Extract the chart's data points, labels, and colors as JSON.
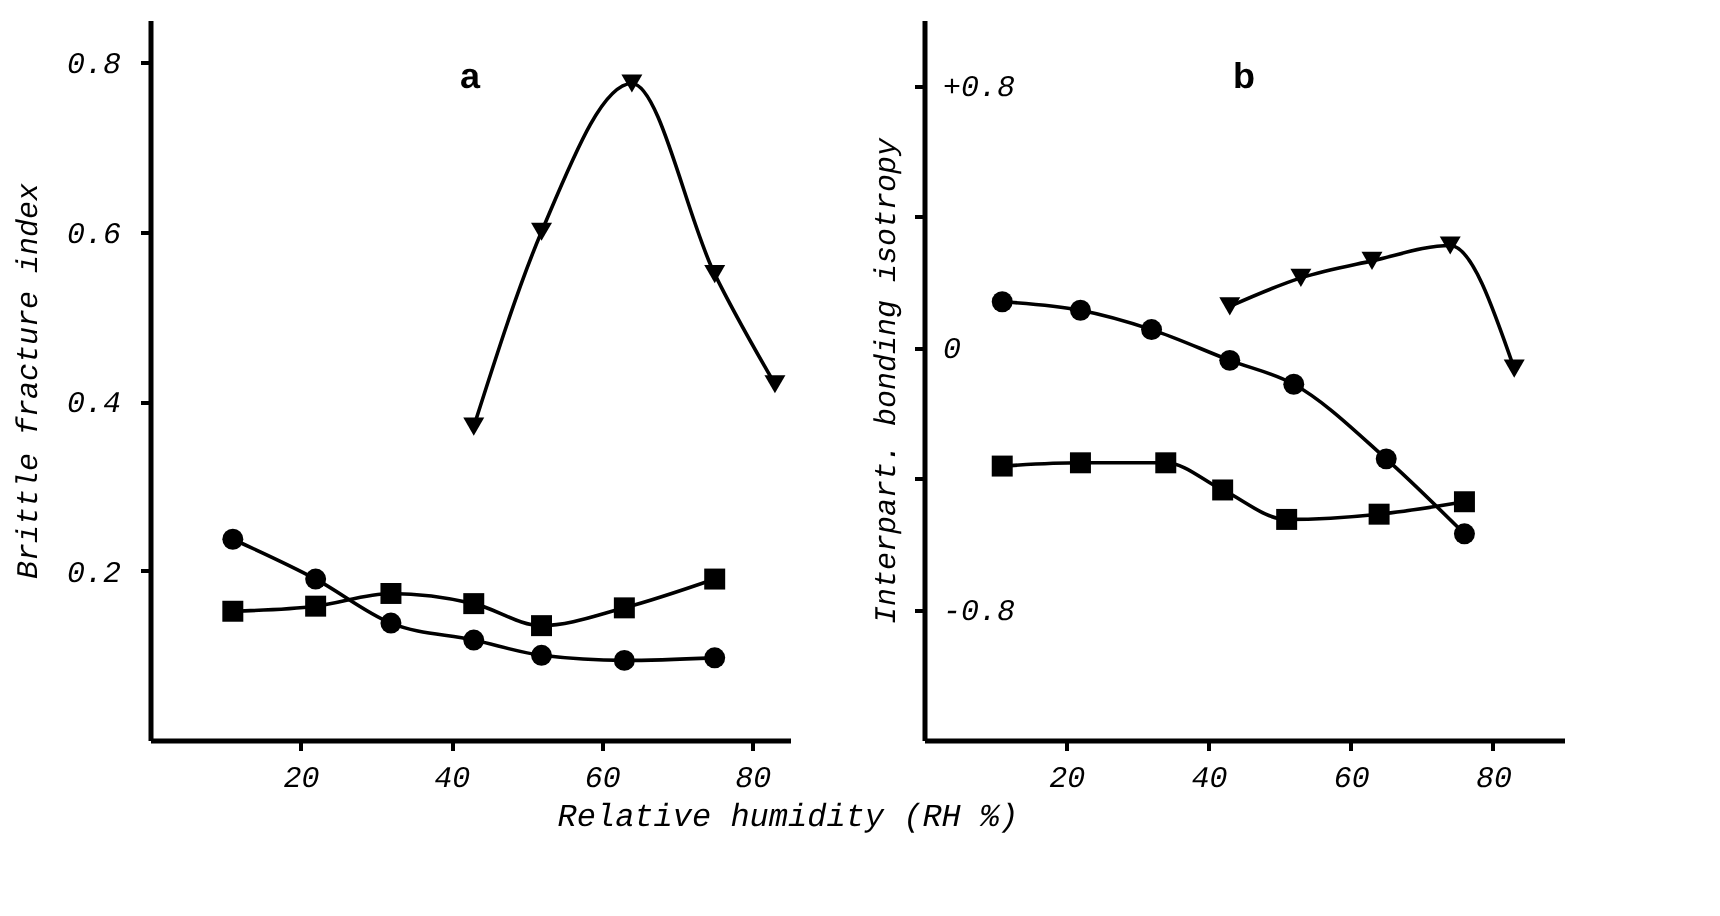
{
  "chart_data": [
    {
      "type": "line",
      "title": "a",
      "xlabel": "Relative humidity (RH %)",
      "ylabel": "Brittle fracture index",
      "xlim": [
        0,
        85
      ],
      "ylim": [
        0,
        0.85
      ],
      "xticks": [
        20,
        40,
        60,
        80
      ],
      "yticks": [
        0.2,
        0.4,
        0.6,
        0.8
      ],
      "grid": false,
      "line_style": "solid",
      "series": [
        {
          "color": "#000000",
          "marker": "triangle",
          "x": [
            43,
            52,
            64,
            75,
            83
          ],
          "values": [
            0.37,
            0.6,
            0.775,
            0.55,
            0.42
          ]
        },
        {
          "color": "#000000",
          "marker": "circle",
          "x": [
            11,
            22,
            32,
            43,
            52,
            63,
            75
          ],
          "values": [
            0.237,
            0.19,
            0.138,
            0.118,
            0.1,
            0.094,
            0.097
          ]
        },
        {
          "color": "#000000",
          "marker": "square",
          "x": [
            11,
            22,
            32,
            43,
            52,
            63,
            75
          ],
          "values": [
            0.152,
            0.158,
            0.173,
            0.161,
            0.135,
            0.156,
            0.19
          ]
        }
      ]
    },
    {
      "type": "line",
      "title": "b",
      "ylabel": "Interpart. bonding isotropy",
      "xlim": [
        0,
        90
      ],
      "ylim": [
        -1.2,
        1.0
      ],
      "xticks": [
        20,
        40,
        60,
        80
      ],
      "yticks": [
        {
          "value": 0.8,
          "label": "+0.8"
        },
        {
          "value": 0.4,
          "label": null
        },
        0,
        {
          "value": -0.4,
          "label": null
        },
        -0.8
      ],
      "grid": false,
      "line_style": "solid",
      "series": [
        {
          "color": "#000000",
          "marker": "triangle",
          "x": [
            43,
            53,
            63,
            74,
            83
          ],
          "values": [
            0.125,
            0.212,
            0.264,
            0.311,
            -0.065
          ]
        },
        {
          "color": "#000000",
          "marker": "circle",
          "x": [
            11,
            22,
            32,
            43,
            52,
            65,
            76
          ],
          "values": [
            0.139,
            0.113,
            0.054,
            -0.04,
            -0.113,
            -0.341,
            -0.57
          ]
        },
        {
          "color": "#000000",
          "marker": "square",
          "x": [
            11,
            22,
            34,
            42,
            51,
            64,
            76
          ],
          "values": [
            -0.363,
            -0.353,
            -0.353,
            -0.436,
            -0.526,
            -0.51,
            -0.472
          ]
        }
      ]
    }
  ]
}
